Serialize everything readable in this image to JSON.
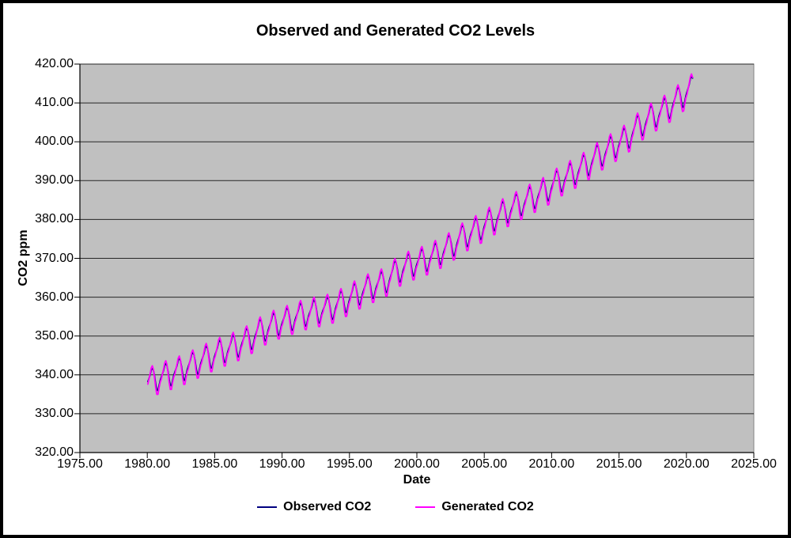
{
  "chart_data": {
    "type": "line",
    "title": "Observed and Generated CO2 Levels",
    "xlabel": "Date",
    "ylabel": "CO2 ppm",
    "xlim": [
      1975,
      2025
    ],
    "ylim": [
      320,
      420
    ],
    "grid": "horizontal",
    "legend_position": "bottom",
    "plot_background": "#c0c0c0",
    "plot_border_color": "#848484",
    "gridline_color": "#262626",
    "axis_color": "#000000",
    "x_ticks": [
      {
        "value": 1975,
        "label": "1975.00"
      },
      {
        "value": 1980,
        "label": "1980.00"
      },
      {
        "value": 1985,
        "label": "1985.00"
      },
      {
        "value": 1990,
        "label": "1990.00"
      },
      {
        "value": 1995,
        "label": "1995.00"
      },
      {
        "value": 2000,
        "label": "2000.00"
      },
      {
        "value": 2005,
        "label": "2005.00"
      },
      {
        "value": 2010,
        "label": "2010.00"
      },
      {
        "value": 2015,
        "label": "2015.00"
      },
      {
        "value": 2020,
        "label": "2020.00"
      },
      {
        "value": 2025,
        "label": "2025.00"
      }
    ],
    "y_ticks": [
      {
        "value": 420,
        "label": "420.00"
      },
      {
        "value": 410,
        "label": "410.00"
      },
      {
        "value": 400,
        "label": "400.00"
      },
      {
        "value": 390,
        "label": "390.00"
      },
      {
        "value": 380,
        "label": "380.00"
      },
      {
        "value": 370,
        "label": "370.00"
      },
      {
        "value": 360,
        "label": "360.00"
      },
      {
        "value": 350,
        "label": "350.00"
      },
      {
        "value": 340,
        "label": "340.00"
      },
      {
        "value": 330,
        "label": "330.00"
      },
      {
        "value": 320,
        "label": "320.00"
      }
    ],
    "sampling": "monthly",
    "x_start_year": 1980,
    "months_total": 486,
    "x_data_range": [
      1980.0,
      2020.5
    ],
    "anchor_years_start": 1980,
    "series": [
      {
        "name": "Observed CO2",
        "color": "#000080",
        "annual_means": [
          338.9,
          340.1,
          341.4,
          343.0,
          344.6,
          346.1,
          347.4,
          349.2,
          351.6,
          353.1,
          354.4,
          355.6,
          356.4,
          357.1,
          358.8,
          360.8,
          362.6,
          363.7,
          366.7,
          368.4,
          369.5,
          371.1,
          373.2,
          375.8,
          377.5,
          379.8,
          381.9,
          383.8,
          385.6,
          387.4,
          389.9,
          391.7,
          393.9,
          396.5,
          398.6,
          400.8,
          404.2,
          406.6,
          408.5,
          411.4,
          414.2
        ],
        "seasonal_profile": [
          -0.1,
          0.6,
          1.4,
          2.6,
          3.0,
          2.3,
          0.7,
          -1.4,
          -3.1,
          -3.3,
          -2.1,
          -0.9
        ]
      },
      {
        "name": "Generated CO2",
        "color": "#ff00ff",
        "annual_means": [
          338.7,
          340.0,
          341.2,
          342.8,
          344.5,
          346.0,
          347.3,
          349.0,
          351.4,
          353.0,
          354.2,
          355.5,
          356.3,
          357.0,
          358.6,
          360.6,
          362.4,
          363.6,
          366.5,
          368.2,
          369.4,
          371.0,
          373.0,
          375.6,
          377.4,
          379.6,
          381.8,
          383.6,
          385.5,
          387.2,
          389.7,
          391.6,
          393.7,
          396.3,
          398.5,
          400.7,
          404.0,
          406.4,
          408.4,
          411.2,
          414.0
        ],
        "seasonal_profile": [
          -0.5,
          0.7,
          1.9,
          3.3,
          3.8,
          2.7,
          0.4,
          -2.2,
          -4.0,
          -4.1,
          -2.5,
          -1.2
        ]
      }
    ]
  }
}
